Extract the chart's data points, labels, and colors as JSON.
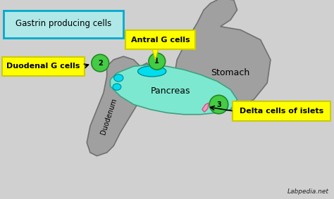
{
  "bg_color": "#d0d0d0",
  "title_box_bg": "#b0e8e8",
  "title_box_edge": "#00aacc",
  "title_text": "Gastrin producing cells",
  "stomach_color": "#a0a0a0",
  "stomach_edge": "#707070",
  "pancreas_color": "#7de8d0",
  "pancreas_edge": "#40a080",
  "duodenum_color": "#a0a0a0",
  "duodenum_edge": "#707070",
  "green_circle_color": "#44cc44",
  "green_circle_edge": "#228822",
  "cyan_blob_color": "#00ddee",
  "cyan_blob_edge": "#008899",
  "label_box_color": "#ffff00",
  "label_box_edge": "#cccc00",
  "pink_shape_color": "#ee99bb",
  "pink_shape_edge": "#cc4477",
  "label1": "Antral G cells",
  "label2": "Duodenal G cells",
  "label3": "Delta cells of islets",
  "organ_stomach": "Stomach",
  "organ_pancreas": "Pancreas",
  "organ_duodenum": "Duodenum",
  "watermark": "Labpedia.net",
  "fig_width": 4.74,
  "fig_height": 2.83,
  "dpi": 100
}
